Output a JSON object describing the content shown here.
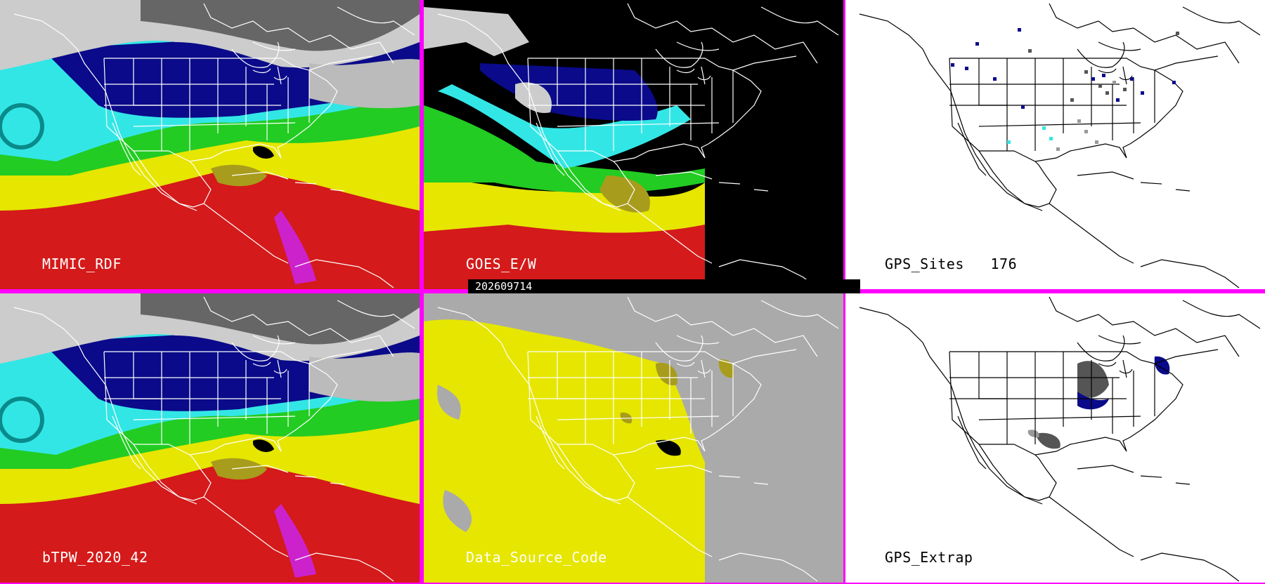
{
  "timestamp": "202609714",
  "panels": [
    {
      "id": "mimic",
      "label": "MIMIC_RDF",
      "style": "tpw"
    },
    {
      "id": "goes",
      "label": "GOES_E/W",
      "style": "goes"
    },
    {
      "id": "gps",
      "label": "GPS_Sites",
      "count": "176",
      "style": "sites"
    },
    {
      "id": "btpw",
      "label": "bTPW_2020_42",
      "style": "tpw"
    },
    {
      "id": "dsc",
      "label": "Data_Source_Code",
      "style": "dsc"
    },
    {
      "id": "extrap",
      "label": "GPS_Extrap",
      "style": "extrap"
    }
  ],
  "colors": {
    "border": "#ff00ff",
    "navy": "#0a0a8a",
    "cyan": "#33e6e6",
    "green": "#22cc22",
    "yellow": "#e6e600",
    "olive": "#a89c1c",
    "red": "#d41a1a",
    "magenta": "#cc22cc",
    "gray": "#aaaaaa"
  }
}
